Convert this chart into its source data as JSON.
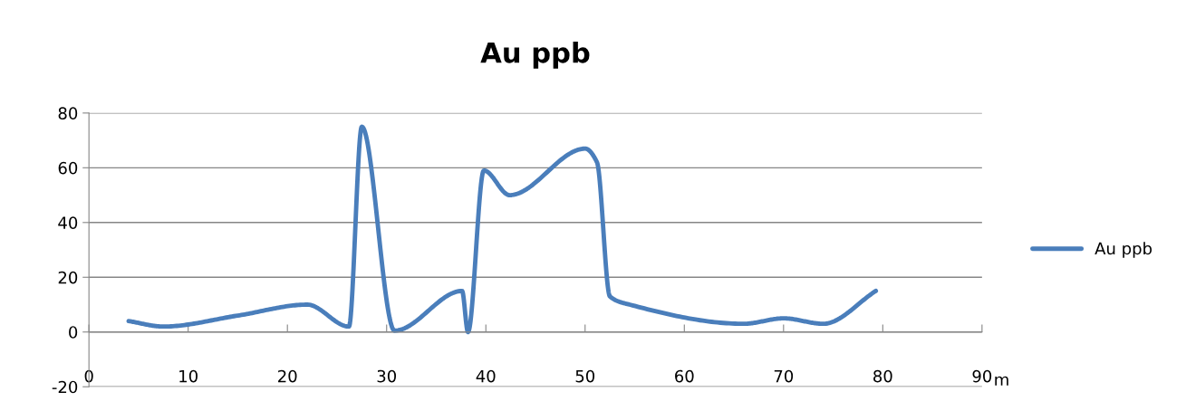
{
  "chart_data": {
    "type": "line",
    "title": "Au ppb",
    "xlabel": "m",
    "x": [
      4,
      7.5,
      15,
      22,
      26.2,
      27.5,
      30.8,
      37.6,
      38.2,
      39.8,
      42.4,
      50,
      51.2,
      52.5,
      54.5,
      66,
      70,
      74,
      79.3
    ],
    "series": [
      {
        "name": "Au ppb",
        "color": "#4a7ebb",
        "values": [
          4,
          2,
          6,
          10,
          2,
          75,
          0.5,
          15,
          0,
          59,
          50,
          67,
          62,
          13,
          10,
          3,
          5,
          3,
          15
        ]
      }
    ],
    "xlim": [
      0,
      90
    ],
    "xticks": [
      0,
      10,
      20,
      30,
      40,
      50,
      60,
      70,
      80,
      90
    ],
    "ylim": [
      -20,
      80
    ],
    "yticks": [
      -20,
      0,
      20,
      40,
      60,
      80
    ],
    "grid": "y",
    "legend": "right",
    "marker": "none",
    "line_style": "solid"
  }
}
